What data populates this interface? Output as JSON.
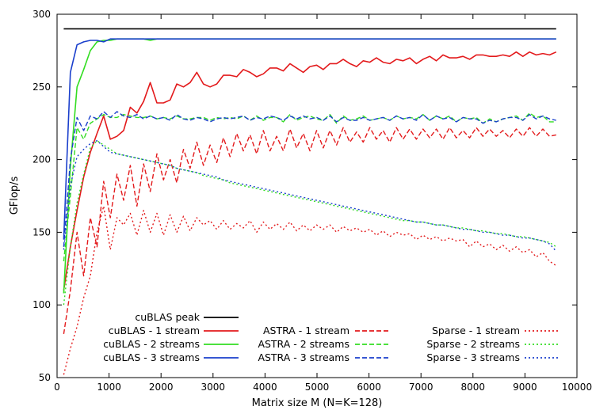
{
  "chart_data": {
    "type": "line",
    "title": "",
    "xlabel": "Matrix size M (N=K=128)",
    "ylabel": "GFlop/s",
    "xlim": [
      0,
      10000
    ],
    "ylim": [
      50,
      300
    ],
    "xticks": [
      0,
      1000,
      2000,
      3000,
      4000,
      5000,
      6000,
      7000,
      8000,
      9000,
      10000
    ],
    "yticks": [
      50,
      100,
      150,
      200,
      250,
      300
    ],
    "grid": false,
    "legend_position": "bottom",
    "x": [
      128,
      256,
      384,
      512,
      640,
      768,
      896,
      1024,
      1152,
      1280,
      1408,
      1536,
      1664,
      1792,
      1920,
      2048,
      2176,
      2304,
      2432,
      2560,
      2688,
      2816,
      2944,
      3072,
      3200,
      3328,
      3456,
      3584,
      3712,
      3840,
      3968,
      4096,
      4224,
      4352,
      4480,
      4608,
      4736,
      4864,
      4992,
      5120,
      5248,
      5376,
      5504,
      5632,
      5760,
      5888,
      6016,
      6144,
      6272,
      6400,
      6528,
      6656,
      6784,
      6912,
      7040,
      7168,
      7296,
      7424,
      7552,
      7680,
      7808,
      7936,
      8064,
      8192,
      8320,
      8448,
      8576,
      8704,
      8832,
      8960,
      9088,
      9216,
      9344,
      9472,
      9600
    ],
    "series": [
      {
        "name": "cuBLAS peak",
        "color": "#000000",
        "dash": "solid",
        "values": [
          290,
          290,
          290,
          290,
          290,
          290,
          290,
          290,
          290,
          290,
          290,
          290,
          290,
          290,
          290,
          290,
          290,
          290,
          290,
          290,
          290,
          290,
          290,
          290,
          290,
          290,
          290,
          290,
          290,
          290,
          290,
          290,
          290,
          290,
          290,
          290,
          290,
          290,
          290,
          290,
          290,
          290,
          290,
          290,
          290,
          290,
          290,
          290,
          290,
          290,
          290,
          290,
          290,
          290,
          290,
          290,
          290,
          290,
          290,
          290,
          290,
          290,
          290,
          290,
          290,
          290,
          290,
          290,
          290,
          290,
          290,
          290,
          290,
          290,
          290
        ]
      },
      {
        "name": "cuBLAS - 1 stream",
        "color": "#e31a1c",
        "dash": "solid",
        "values": [
          110,
          140,
          165,
          188,
          205,
          218,
          230,
          214,
          216,
          220,
          236,
          232,
          240,
          253,
          239,
          239,
          241,
          252,
          250,
          253,
          260,
          252,
          250,
          252,
          258,
          258,
          257,
          262,
          260,
          257,
          259,
          263,
          263,
          261,
          266,
          263,
          260,
          264,
          265,
          262,
          266,
          266,
          269,
          266,
          264,
          268,
          267,
          270,
          267,
          266,
          269,
          268,
          270,
          266,
          269,
          271,
          268,
          272,
          270,
          270,
          271,
          269,
          272,
          272,
          271,
          271,
          272,
          271,
          274,
          271,
          274,
          272,
          273,
          272,
          274
        ]
      },
      {
        "name": "cuBLAS - 2 streams",
        "color": "#33dd22",
        "dash": "solid",
        "values": [
          108,
          195,
          250,
          262,
          275,
          281,
          282,
          282,
          283,
          283,
          283,
          283,
          283,
          282,
          283,
          283,
          283,
          283,
          283,
          283,
          283,
          283,
          283,
          283,
          283,
          283,
          283,
          283,
          283,
          283,
          283,
          283,
          283,
          283,
          283,
          283,
          283,
          283,
          283,
          283,
          283,
          283,
          283,
          283,
          283,
          283,
          283,
          283,
          283,
          283,
          283,
          283,
          283,
          283,
          283,
          283,
          283,
          283,
          283,
          283,
          283,
          283,
          283,
          283,
          283,
          283,
          283,
          283,
          283,
          283,
          283,
          283,
          283,
          283,
          283
        ]
      },
      {
        "name": "cuBLAS - 3 streams",
        "color": "#1a3fcc",
        "dash": "solid",
        "values": [
          145,
          260,
          279,
          281,
          282,
          282,
          281,
          283,
          283,
          283,
          283,
          283,
          283,
          283,
          283,
          283,
          283,
          283,
          283,
          283,
          283,
          283,
          283,
          283,
          283,
          283,
          283,
          283,
          283,
          283,
          283,
          283,
          283,
          283,
          283,
          283,
          283,
          283,
          283,
          283,
          283,
          283,
          283,
          283,
          283,
          283,
          283,
          283,
          283,
          283,
          283,
          283,
          283,
          283,
          283,
          283,
          283,
          283,
          283,
          283,
          283,
          283,
          283,
          283,
          283,
          283,
          283,
          283,
          283,
          283,
          283,
          283,
          283,
          283,
          283
        ]
      },
      {
        "name": "ASTRA - 1 stream",
        "color": "#e31a1c",
        "dash": "dashed",
        "values": [
          80,
          110,
          150,
          120,
          160,
          140,
          185,
          160,
          190,
          172,
          196,
          168,
          197,
          178,
          204,
          186,
          200,
          184,
          207,
          194,
          212,
          196,
          210,
          198,
          215,
          202,
          218,
          206,
          217,
          204,
          220,
          206,
          216,
          206,
          221,
          208,
          218,
          206,
          220,
          208,
          220,
          210,
          222,
          212,
          219,
          212,
          222,
          214,
          220,
          212,
          222,
          214,
          221,
          214,
          221,
          215,
          221,
          214,
          222,
          215,
          220,
          215,
          222,
          216,
          221,
          216,
          220,
          215,
          221,
          216,
          222,
          216,
          221,
          216,
          217
        ]
      },
      {
        "name": "ASTRA - 2 streams",
        "color": "#33dd22",
        "dash": "dashed",
        "values": [
          130,
          175,
          222,
          214,
          225,
          228,
          231,
          229,
          229,
          231,
          230,
          229,
          229,
          230,
          228,
          229,
          228,
          230,
          228,
          228,
          229,
          229,
          227,
          229,
          228,
          229,
          228,
          230,
          227,
          230,
          227,
          229,
          229,
          226,
          231,
          227,
          229,
          230,
          228,
          227,
          231,
          225,
          230,
          227,
          228,
          230,
          227,
          228,
          229,
          227,
          230,
          228,
          229,
          228,
          231,
          227,
          230,
          228,
          230,
          226,
          229,
          228,
          229,
          225,
          228,
          226,
          228,
          229,
          230,
          227,
          232,
          229,
          230,
          226,
          226
        ]
      },
      {
        "name": "ASTRA - 3 streams",
        "color": "#1a3fcc",
        "dash": "dashed",
        "values": [
          140,
          200,
          229,
          220,
          230,
          228,
          233,
          229,
          233,
          230,
          229,
          231,
          228,
          230,
          228,
          229,
          227,
          231,
          228,
          227,
          229,
          228,
          226,
          228,
          229,
          228,
          229,
          230,
          227,
          229,
          228,
          230,
          229,
          227,
          230,
          228,
          230,
          228,
          229,
          227,
          230,
          226,
          229,
          227,
          227,
          229,
          227,
          228,
          229,
          227,
          230,
          228,
          229,
          227,
          231,
          227,
          230,
          228,
          229,
          226,
          229,
          228,
          228,
          225,
          227,
          226,
          228,
          229,
          229,
          227,
          231,
          228,
          230,
          228,
          227
        ]
      },
      {
        "name": "Sparse - 1 stream",
        "color": "#e31a1c",
        "dash": "dotted",
        "values": [
          52,
          70,
          85,
          105,
          120,
          150,
          168,
          138,
          160,
          155,
          163,
          148,
          165,
          150,
          163,
          148,
          162,
          150,
          161,
          151,
          160,
          155,
          158,
          152,
          158,
          152,
          156,
          153,
          158,
          150,
          157,
          152,
          156,
          152,
          157,
          151,
          155,
          151,
          155,
          152,
          155,
          150,
          154,
          151,
          153,
          150,
          152,
          148,
          151,
          147,
          150,
          148,
          149,
          145,
          148,
          145,
          147,
          144,
          146,
          144,
          145,
          140,
          144,
          140,
          142,
          138,
          141,
          137,
          140,
          136,
          138,
          133,
          136,
          130,
          127
        ]
      },
      {
        "name": "Sparse - 2 streams",
        "color": "#33dd22",
        "dash": "dotted",
        "values": [
          100,
          140,
          170,
          190,
          208,
          213,
          210,
          207,
          204,
          203,
          202,
          201,
          200,
          199,
          198,
          197,
          196,
          194,
          193,
          192,
          191,
          189,
          188,
          187,
          186,
          184,
          183,
          182,
          181,
          180,
          179,
          178,
          177,
          176,
          175,
          174,
          173,
          172,
          171,
          170,
          169,
          168,
          167,
          166,
          165,
          164,
          163,
          162,
          161,
          160,
          159,
          158,
          158,
          157,
          157,
          156,
          155,
          155,
          154,
          153,
          153,
          152,
          151,
          151,
          150,
          149,
          149,
          148,
          147,
          147,
          146,
          145,
          144,
          143,
          140
        ]
      },
      {
        "name": "Sparse - 3 streams",
        "color": "#1a3fcc",
        "dash": "dotted",
        "values": [
          138,
          182,
          202,
          207,
          211,
          213,
          209,
          205,
          204,
          203,
          202,
          201,
          200,
          199,
          198,
          197,
          196,
          194,
          193,
          192,
          191,
          190,
          189,
          188,
          186,
          185,
          184,
          183,
          182,
          181,
          180,
          179,
          178,
          177,
          176,
          175,
          174,
          173,
          172,
          171,
          170,
          169,
          168,
          167,
          166,
          165,
          164,
          163,
          162,
          161,
          160,
          159,
          158,
          157,
          157,
          156,
          155,
          155,
          154,
          153,
          152,
          152,
          151,
          150,
          150,
          149,
          148,
          148,
          147,
          146,
          146,
          145,
          144,
          142,
          137
        ]
      }
    ]
  }
}
